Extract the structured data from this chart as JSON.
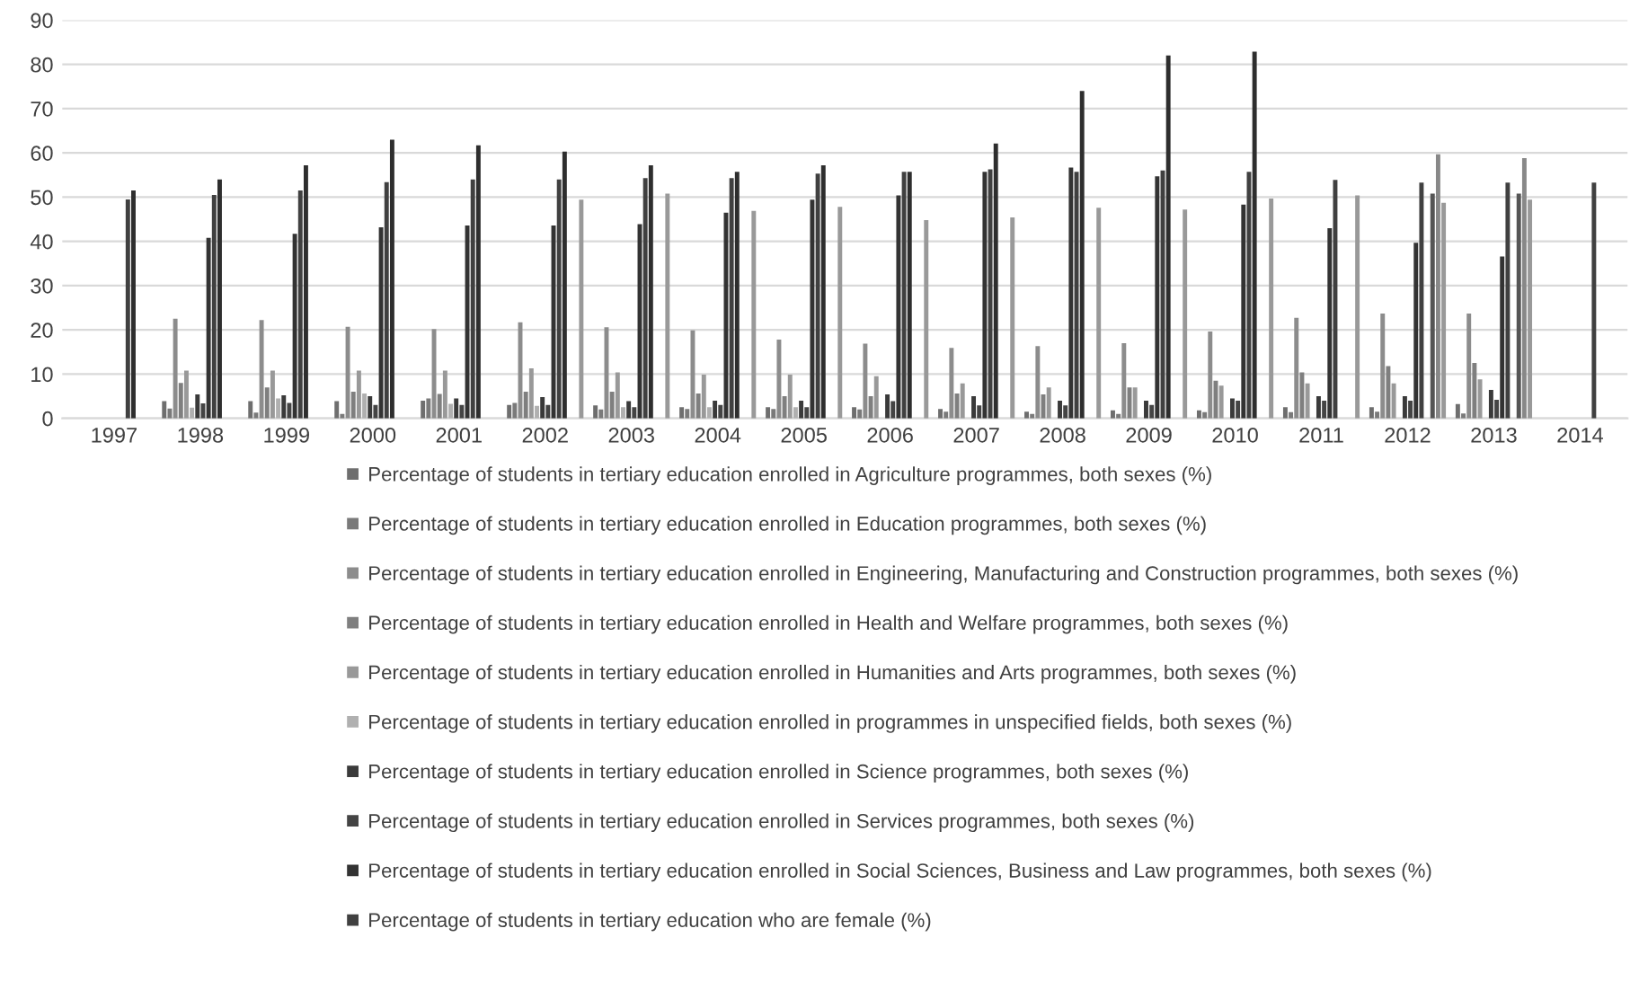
{
  "chart_data": {
    "type": "bar",
    "categories": [
      "1997",
      "1998",
      "1999",
      "2000",
      "2001",
      "2002",
      "2003",
      "2004",
      "2005",
      "2006",
      "2007",
      "2008",
      "2009",
      "2010",
      "2011",
      "2012",
      "2013",
      "2014"
    ],
    "ylim": [
      0,
      90
    ],
    "yticks": [
      0,
      10,
      20,
      30,
      40,
      50,
      60,
      70,
      80,
      90
    ],
    "grid": "y",
    "legend": "bottom",
    "series": [
      {
        "name": "Percentage of students in tertiary education enrolled in Agriculture programmes, both sexes (%)",
        "color": "#6e6e6e",
        "values": [
          null,
          3.9,
          3.9,
          3.9,
          4,
          3,
          2.9,
          2.5,
          2.5,
          2.5,
          2.1,
          1.5,
          1.8,
          1.8,
          2.5,
          2.5,
          3.2,
          null
        ]
      },
      {
        "name": "Percentage of students in tertiary education enrolled in Education programmes, both sexes (%)",
        "color": "#7a7a7a",
        "values": [
          null,
          2.2,
          1.3,
          1,
          4.5,
          3.5,
          2,
          2.1,
          2.1,
          2,
          1.5,
          1,
          1,
          1.4,
          1.4,
          1.5,
          1.1,
          null
        ]
      },
      {
        "name": "Percentage of students in tertiary education enrolled in Engineering, Manufacturing and Construction programmes, both sexes (%)",
        "color": "#8c8c8c",
        "values": [
          null,
          22.5,
          22.2,
          20.7,
          20.2,
          21.7,
          20.6,
          19.9,
          17.8,
          16.9,
          15.9,
          16.3,
          17,
          19.6,
          22.7,
          23.7,
          23.7,
          null
        ]
      },
      {
        "name": "Percentage of students in tertiary education enrolled in Health and Welfare programmes, both sexes (%)",
        "color": "#7f7f7f",
        "values": [
          null,
          8,
          7,
          6,
          5.5,
          6,
          6,
          5.6,
          5,
          5,
          5.6,
          5.4,
          7,
          8.5,
          10.4,
          11.8,
          12.5,
          null
        ]
      },
      {
        "name": "Percentage of students in tertiary education enrolled in Humanities and Arts programmes, both sexes (%)",
        "color": "#999999",
        "values": [
          null,
          10.8,
          10.8,
          10.8,
          10.8,
          11.3,
          10.4,
          9.9,
          9.9,
          9.5,
          7.9,
          7,
          7,
          7.4,
          7.9,
          7.9,
          8.8,
          null
        ]
      },
      {
        "name": "Percentage of students in tertiary education enrolled in programmes in unspecified fields, both sexes (%)",
        "color": "#b0b0b0",
        "values": [
          null,
          2.4,
          4.5,
          5.6,
          3.3,
          2.8,
          2.5,
          2.5,
          2.5,
          null,
          null,
          null,
          null,
          null,
          null,
          null,
          null,
          null
        ]
      },
      {
        "name": "Percentage of students in tertiary education enrolled in Science programmes, both sexes (%)",
        "color": "#3a3a3a",
        "values": [
          null,
          5.4,
          5.2,
          5,
          4.5,
          4.8,
          3.9,
          4,
          4,
          5.4,
          5,
          4,
          4,
          4.5,
          5,
          5,
          6.4,
          null
        ]
      },
      {
        "name": "Percentage of students in tertiary education enrolled in Services programmes, both sexes (%)",
        "color": "#444444",
        "values": [
          null,
          3.4,
          3.5,
          3,
          3,
          3,
          2.5,
          3,
          2.5,
          3.9,
          2.9,
          2.9,
          3,
          4,
          4,
          4,
          4.2,
          null
        ]
      },
      {
        "name": "Percentage of students in tertiary education enrolled in Social Sciences, Business and Law programmes, both sexes (%)",
        "color": "#333333",
        "values": [
          null,
          40.8,
          41.7,
          43.2,
          43.6,
          43.6,
          43.9,
          46.5,
          49.4,
          50.4,
          55.7,
          56.7,
          54.7,
          48.3,
          43,
          39.7,
          36.6,
          null
        ]
      },
      {
        "name": "Percentage of students in tertiary education who are female (%)",
        "color": "#404040",
        "values": [
          49.5,
          50.5,
          51.5,
          53.4,
          54,
          54,
          54.3,
          54.3,
          55.3,
          55.7,
          56.3,
          55.7,
          56,
          55.7,
          53.9,
          53.3,
          53.3,
          53.3
        ]
      },
      {
        "color": "#2e2e2e",
        "values": [
          51.5,
          54,
          57.2,
          63,
          61.7,
          60.3,
          57.2,
          55.7,
          57.2,
          55.7,
          62.1,
          74,
          82,
          82.9,
          null,
          null,
          null,
          null
        ]
      },
      {
        "color": "#555555",
        "values": [
          null,
          null,
          null,
          null,
          null,
          null,
          null,
          null,
          null,
          null,
          null,
          null,
          null,
          null,
          null,
          50.8,
          50.8,
          null
        ]
      },
      {
        "color": "#888888",
        "values": [
          null,
          null,
          null,
          null,
          null,
          null,
          null,
          null,
          null,
          null,
          null,
          null,
          null,
          null,
          null,
          59.7,
          58.8,
          null
        ]
      },
      {
        "color": "#999999",
        "values": [
          null,
          null,
          null,
          null,
          null,
          49.4,
          50.8,
          46.9,
          47.8,
          44.8,
          45.4,
          47.6,
          47.2,
          49.7,
          50.4,
          48.7,
          49.4,
          null
        ]
      }
    ]
  }
}
